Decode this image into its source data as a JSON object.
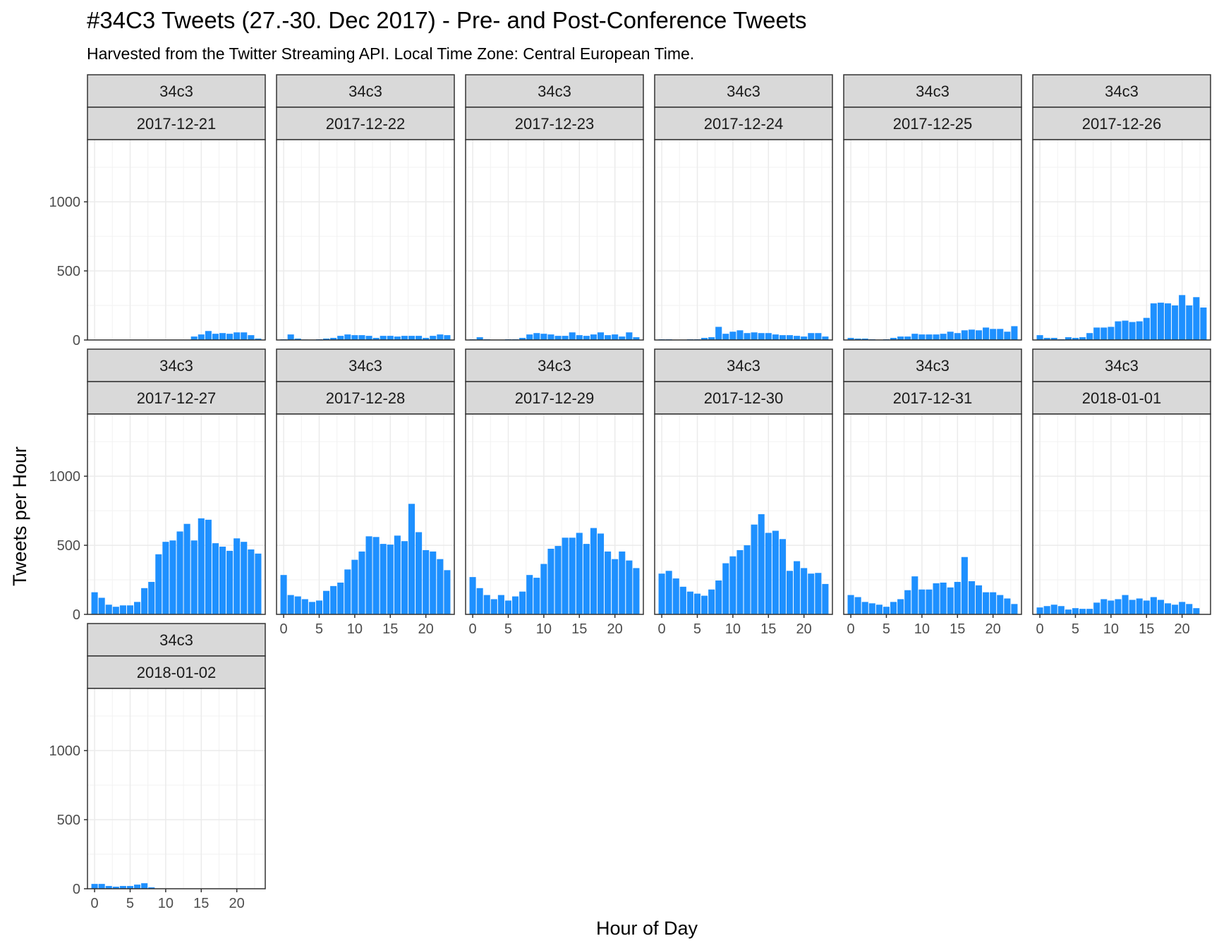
{
  "chart_data": {
    "type": "bar",
    "title": "#34C3 Tweets (27.-30. Dec 2017) - Pre- and Post-Conference Tweets",
    "subtitle": "Harvested from the Twitter Streaming API. Local Time Zone: Central European Time.",
    "xlabel": "Hour of Day",
    "ylabel": "Tweets per Hour",
    "xlim": [
      -1,
      24
    ],
    "ylim": [
      0,
      1450
    ],
    "x_ticks": [
      0,
      5,
      10,
      15,
      20
    ],
    "y_ticks": [
      0,
      500,
      1000
    ],
    "grid": true,
    "bar_color": "#1E90FF",
    "facet_layout": "wrap, 6 columns",
    "facets": [
      {
        "hashtag": "34c3",
        "date": "2017-12-21",
        "values": [
          null,
          null,
          null,
          null,
          null,
          null,
          null,
          null,
          null,
          null,
          null,
          null,
          null,
          null,
          25,
          40,
          65,
          45,
          50,
          45,
          55,
          55,
          35,
          10
        ]
      },
      {
        "hashtag": "34c3",
        "date": "2017-12-22",
        "values": [
          5,
          40,
          10,
          3,
          null,
          5,
          10,
          15,
          30,
          40,
          35,
          35,
          30,
          15,
          30,
          30,
          25,
          30,
          30,
          30,
          15,
          30,
          40,
          35
        ]
      },
      {
        "hashtag": "34c3",
        "date": "2017-12-23",
        "values": [
          5,
          20,
          5,
          2,
          null,
          5,
          5,
          15,
          40,
          50,
          45,
          40,
          30,
          30,
          55,
          35,
          30,
          40,
          55,
          35,
          40,
          25,
          55,
          20
        ]
      },
      {
        "hashtag": "34c3",
        "date": "2017-12-24",
        "values": [
          5,
          5,
          null,
          null,
          5,
          5,
          15,
          20,
          95,
          45,
          60,
          70,
          50,
          55,
          50,
          50,
          40,
          35,
          35,
          30,
          25,
          50,
          50,
          25
        ]
      },
      {
        "hashtag": "34c3",
        "date": "2017-12-25",
        "values": [
          15,
          10,
          10,
          5,
          null,
          5,
          15,
          25,
          25,
          45,
          40,
          40,
          40,
          45,
          60,
          50,
          70,
          75,
          70,
          90,
          80,
          80,
          60,
          100
        ]
      },
      {
        "hashtag": "34c3",
        "date": "2017-12-26",
        "values": [
          35,
          15,
          15,
          5,
          20,
          15,
          20,
          50,
          90,
          90,
          95,
          135,
          140,
          130,
          135,
          160,
          265,
          270,
          265,
          250,
          325,
          250,
          310,
          235
        ]
      },
      {
        "hashtag": "34c3",
        "date": "2017-12-27",
        "values": [
          160,
          120,
          70,
          55,
          65,
          65,
          90,
          190,
          235,
          435,
          525,
          535,
          600,
          655,
          535,
          695,
          685,
          515,
          490,
          460,
          550,
          525,
          470,
          440
        ]
      },
      {
        "hashtag": "34c3",
        "date": "2017-12-28",
        "values": [
          285,
          140,
          130,
          110,
          90,
          100,
          170,
          205,
          230,
          325,
          395,
          455,
          565,
          560,
          510,
          505,
          570,
          530,
          800,
          595,
          465,
          455,
          400,
          320
        ]
      },
      {
        "hashtag": "34c3",
        "date": "2017-12-29",
        "values": [
          270,
          190,
          140,
          110,
          140,
          100,
          130,
          165,
          285,
          265,
          365,
          475,
          495,
          555,
          555,
          590,
          510,
          625,
          585,
          455,
          400,
          455,
          390,
          335
        ]
      },
      {
        "hashtag": "34c3",
        "date": "2017-12-30",
        "values": [
          295,
          315,
          260,
          200,
          165,
          150,
          135,
          180,
          245,
          370,
          420,
          465,
          500,
          650,
          725,
          590,
          605,
          545,
          315,
          385,
          335,
          295,
          300,
          220
        ]
      },
      {
        "hashtag": "34c3",
        "date": "2017-12-31",
        "values": [
          140,
          125,
          90,
          80,
          70,
          55,
          90,
          110,
          175,
          275,
          180,
          180,
          225,
          230,
          195,
          235,
          415,
          240,
          210,
          160,
          160,
          140,
          115,
          75
        ]
      },
      {
        "hashtag": "34c3",
        "date": "2018-01-01",
        "values": [
          50,
          60,
          70,
          60,
          35,
          45,
          40,
          40,
          85,
          110,
          100,
          110,
          140,
          105,
          115,
          100,
          125,
          105,
          80,
          70,
          90,
          75,
          45,
          null
        ]
      },
      {
        "hashtag": "34c3",
        "date": "2018-01-02",
        "values": [
          35,
          35,
          20,
          15,
          20,
          20,
          30,
          40,
          10,
          null,
          null,
          null,
          null,
          null,
          null,
          null,
          null,
          null,
          null,
          null,
          null,
          null,
          null,
          null
        ]
      }
    ]
  }
}
